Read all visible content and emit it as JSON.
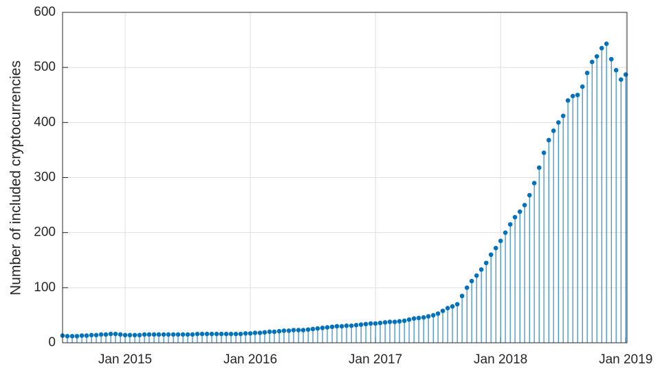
{
  "chart_data": {
    "type": "stem",
    "y_label": "Number of included cryptocurrencies",
    "color": "#0072BD",
    "grid": true,
    "x": [
      2014.5,
      2014.538,
      2014.577,
      2014.615,
      2014.654,
      2014.692,
      2014.731,
      2014.769,
      2014.808,
      2014.846,
      2014.885,
      2014.923,
      2014.962,
      2015,
      2015.038,
      2015.077,
      2015.115,
      2015.154,
      2015.192,
      2015.231,
      2015.269,
      2015.308,
      2015.346,
      2015.385,
      2015.423,
      2015.462,
      2015.5,
      2015.538,
      2015.577,
      2015.615,
      2015.654,
      2015.692,
      2015.731,
      2015.769,
      2015.808,
      2015.846,
      2015.885,
      2015.923,
      2015.962,
      2016,
      2016.038,
      2016.077,
      2016.115,
      2016.154,
      2016.192,
      2016.231,
      2016.269,
      2016.308,
      2016.346,
      2016.385,
      2016.423,
      2016.462,
      2016.5,
      2016.538,
      2016.577,
      2016.615,
      2016.654,
      2016.692,
      2016.731,
      2016.769,
      2016.808,
      2016.846,
      2016.885,
      2016.923,
      2016.962,
      2017,
      2017.038,
      2017.077,
      2017.115,
      2017.154,
      2017.192,
      2017.231,
      2017.269,
      2017.308,
      2017.346,
      2017.385,
      2017.423,
      2017.462,
      2017.5,
      2017.538,
      2017.577,
      2017.615,
      2017.654,
      2017.692,
      2017.731,
      2017.769,
      2017.808,
      2017.846,
      2017.885,
      2017.923,
      2017.962,
      2018,
      2018.038,
      2018.077,
      2018.115,
      2018.154,
      2018.192,
      2018.231,
      2018.269,
      2018.308,
      2018.346,
      2018.385,
      2018.423,
      2018.462,
      2018.5,
      2018.538,
      2018.577,
      2018.615,
      2018.654,
      2018.692,
      2018.731,
      2018.769,
      2018.808,
      2018.846,
      2018.885,
      2018.923,
      2018.962,
      2019
    ],
    "values": [
      13,
      12,
      12,
      12,
      13,
      13,
      14,
      14,
      15,
      15,
      16,
      16,
      15,
      14,
      14,
      14,
      14,
      15,
      15,
      15,
      15,
      15,
      15,
      15,
      15,
      15,
      15,
      15,
      16,
      16,
      16,
      16,
      16,
      16,
      16,
      16,
      16,
      16,
      17,
      17,
      18,
      18,
      19,
      20,
      20,
      21,
      22,
      22,
      23,
      23,
      23,
      24,
      25,
      26,
      27,
      28,
      29,
      30,
      30,
      31,
      31,
      32,
      33,
      34,
      35,
      35,
      36,
      37,
      38,
      38,
      39,
      40,
      42,
      44,
      45,
      46,
      48,
      50,
      53,
      58,
      63,
      66,
      70,
      85,
      100,
      112,
      122,
      133,
      145,
      160,
      172,
      185,
      200,
      215,
      228,
      238,
      250,
      268,
      290,
      318,
      345,
      368,
      385,
      400,
      412,
      440,
      448,
      450,
      465,
      490,
      510,
      520,
      535,
      543,
      515,
      495,
      478,
      487
    ],
    "xlim": [
      2014.5,
      2019.01
    ],
    "xticks": [
      {
        "value": 2015,
        "label": "Jan 2015"
      },
      {
        "value": 2016,
        "label": "Jan 2016"
      },
      {
        "value": 2017,
        "label": "Jan 2017"
      },
      {
        "value": 2018,
        "label": "Jan 2018"
      },
      {
        "value": 2019,
        "label": "Jan 2019"
      }
    ],
    "ylim": [
      0,
      600
    ],
    "yticks": [
      0,
      100,
      200,
      300,
      400,
      500,
      600
    ]
  }
}
